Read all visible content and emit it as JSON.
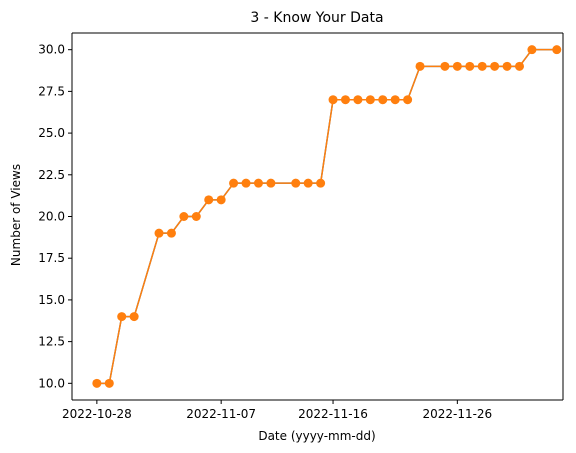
{
  "chart_data": {
    "type": "line",
    "title": "3 - Know Your Data",
    "xlabel": "Date (yyyy-mm-dd)",
    "ylabel": "Number of Views",
    "ylim": [
      9.0,
      31.0
    ],
    "xlim_day": [
      -2.0,
      37.5
    ],
    "yticks": [
      {
        "value": 10.0,
        "label": "10.0"
      },
      {
        "value": 12.5,
        "label": "12.5"
      },
      {
        "value": 15.0,
        "label": "15.0"
      },
      {
        "value": 17.5,
        "label": "17.5"
      },
      {
        "value": 20.0,
        "label": "20.0"
      },
      {
        "value": 22.5,
        "label": "22.5"
      },
      {
        "value": 25.0,
        "label": "25.0"
      },
      {
        "value": 27.5,
        "label": "27.5"
      },
      {
        "value": 30.0,
        "label": "30.0"
      }
    ],
    "xticks": [
      {
        "day": 0,
        "label": "2022-10-28"
      },
      {
        "day": 10,
        "label": "2022-11-07"
      },
      {
        "day": 19,
        "label": "2022-11-16"
      },
      {
        "day": 29,
        "label": "2022-11-26"
      }
    ],
    "series": [
      {
        "name": "views",
        "color": "#ff7f0e",
        "underline_color": "#1f77b4",
        "day": [
          0,
          1,
          2,
          3,
          5,
          6,
          7,
          8,
          9,
          10,
          11,
          12,
          13,
          14,
          16,
          17,
          18,
          19,
          20,
          21,
          22,
          23,
          24,
          25,
          26,
          28,
          29,
          30,
          31,
          32,
          33,
          34,
          35,
          37
        ],
        "values": [
          10,
          10,
          14,
          14,
          19,
          19,
          20,
          20,
          21,
          21,
          22,
          22,
          22,
          22,
          22,
          22,
          22,
          27,
          27,
          27,
          27,
          27,
          27,
          27,
          29,
          29,
          29,
          29,
          29,
          29,
          29,
          29,
          30,
          30
        ]
      }
    ]
  }
}
